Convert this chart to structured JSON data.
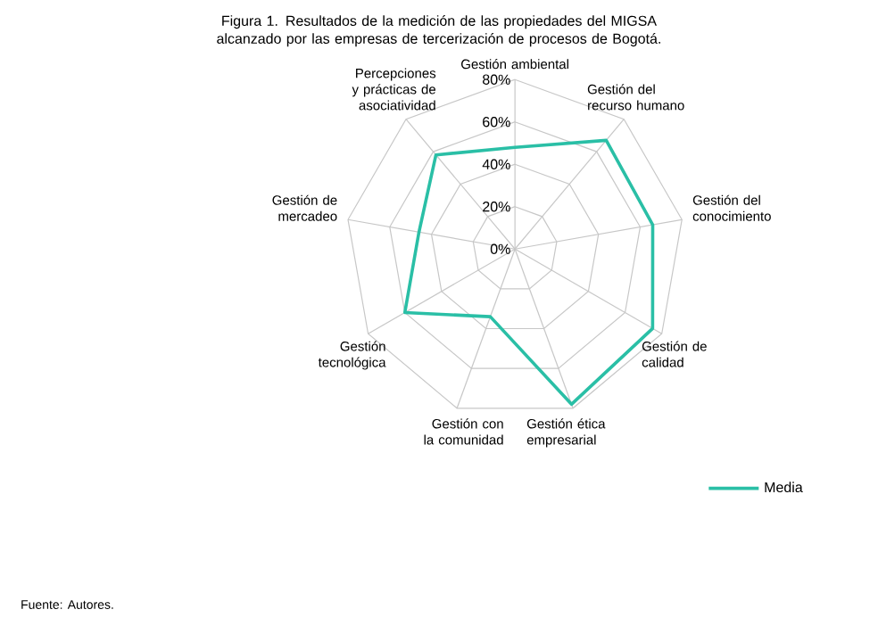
{
  "chart_data": {
    "type": "radar",
    "title": "Figura 1. Resultados de la medición de las propiedades del MIGSA alcanzado por las empresas de tercerización de procesos de Bogotá.",
    "categories": [
      "Gestión ambiental",
      "Gestión del recurso humano",
      "Gestión del conocimiento",
      "Gestión de calidad",
      "Gestión ética empresarial",
      "Gestión con la comunidad",
      "Gestión tecnológica",
      "Gestión de mercadeo",
      "Percepciones y prácticas de asociatividad"
    ],
    "series": [
      {
        "name": "Media",
        "color": "#2abfa6",
        "values": [
          48,
          67,
          66,
          75,
          78,
          34,
          60,
          46,
          58
        ]
      }
    ],
    "ylim": [
      0,
      80
    ],
    "yticks": [
      {
        "value": 0,
        "label": "0%"
      },
      {
        "value": 20,
        "label": "20%"
      },
      {
        "value": 40,
        "label": "40%"
      },
      {
        "value": 60,
        "label": "60%"
      },
      {
        "value": 80,
        "label": "80%"
      }
    ],
    "grid": true,
    "legend": "bottom right",
    "annotations": [
      "Fuente: Autores."
    ]
  }
}
